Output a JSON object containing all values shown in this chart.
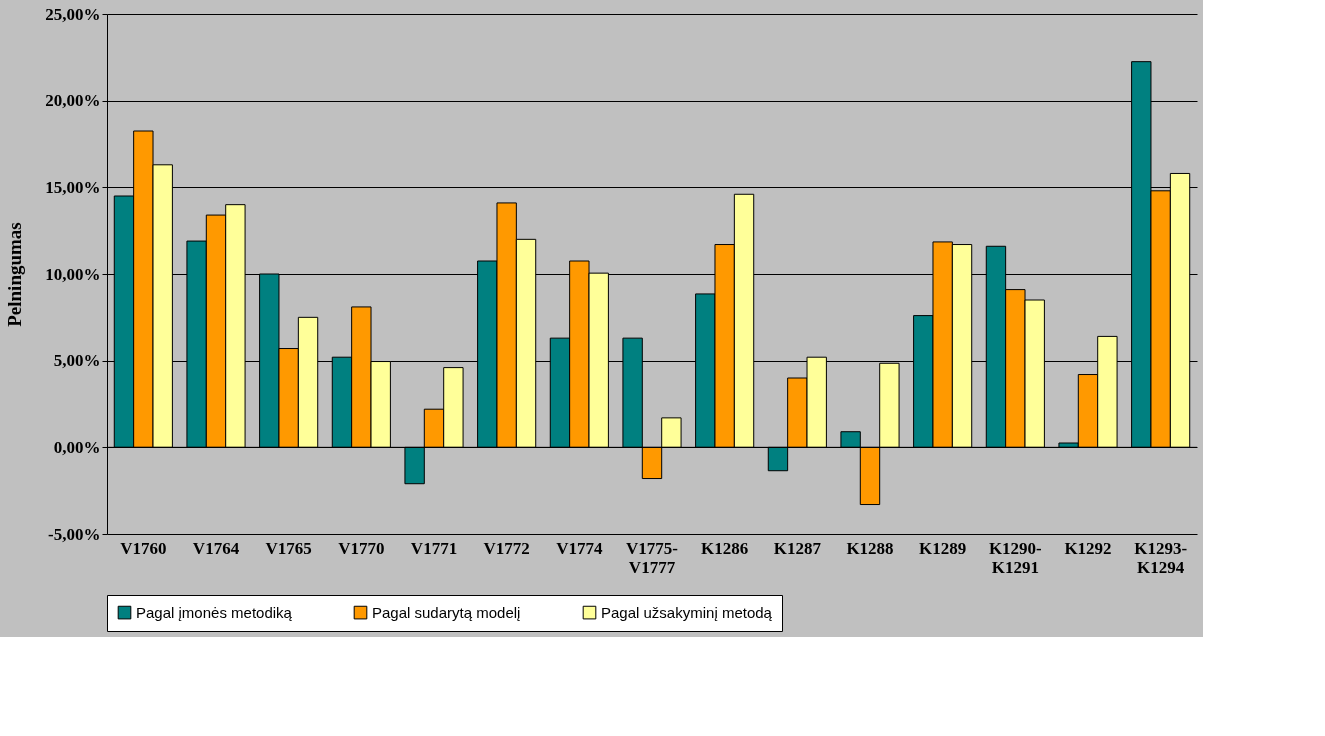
{
  "chart_data": {
    "type": "bar",
    "ylabel": "Pelningumas",
    "categories": [
      "V1760",
      "V1764",
      "V1765",
      "V1770",
      "V1771",
      "V1772",
      "V1774",
      "V1775-V1777",
      "K1286",
      "K1287",
      "K1288",
      "K1289",
      "K1290-K1291",
      "K1292",
      "K1293-K1294"
    ],
    "series": [
      {
        "name": "Pagal įmonės metodiką",
        "color": "#008080",
        "values": [
          14.5,
          11.9,
          10.0,
          5.2,
          -2.1,
          10.75,
          6.3,
          6.3,
          8.85,
          -1.35,
          0.9,
          7.6,
          11.6,
          0.25,
          22.25
        ]
      },
      {
        "name": "Pagal sudarytą modelį",
        "color": "#ff9900",
        "values": [
          18.25,
          13.4,
          5.7,
          8.1,
          2.2,
          14.1,
          10.75,
          -1.8,
          11.7,
          4.0,
          -3.3,
          11.85,
          9.1,
          4.2,
          14.8
        ]
      },
      {
        "name": "Pagal užsakyminį metodą",
        "color": "#ffff99",
        "values": [
          16.3,
          14.0,
          7.5,
          4.95,
          4.6,
          12.0,
          10.05,
          1.7,
          14.6,
          5.2,
          4.85,
          11.7,
          8.5,
          6.4,
          15.8
        ]
      }
    ],
    "ylim": [
      -5,
      25
    ],
    "yticks": [
      {
        "value": -5,
        "label": "-5,00%"
      },
      {
        "value": 0,
        "label": "0,00%"
      },
      {
        "value": 5,
        "label": "5,00%"
      },
      {
        "value": 10,
        "label": "10,00%"
      },
      {
        "value": 15,
        "label": "15,00%"
      },
      {
        "value": 20,
        "label": "20,00%"
      },
      {
        "value": 25,
        "label": "25,00%"
      }
    ],
    "grid": "y",
    "legend": "bottom"
  }
}
